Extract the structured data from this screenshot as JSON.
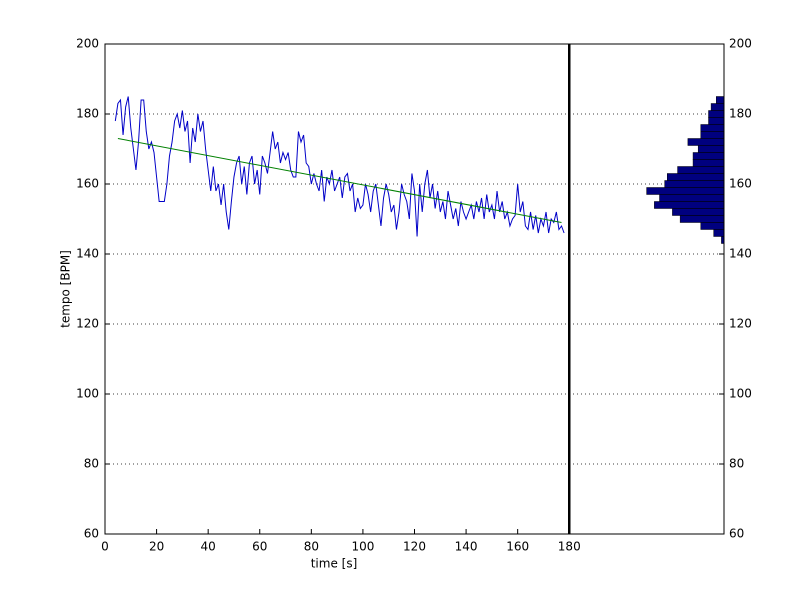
{
  "chart_data": {
    "type": "line",
    "xlabel": "time [s]",
    "ylabel": "tempo [BPM]",
    "xlim": [
      0,
      240
    ],
    "xticks": [
      0,
      20,
      40,
      60,
      80,
      100,
      120,
      140,
      160,
      180
    ],
    "ylim": [
      60,
      200
    ],
    "yticks": [
      60,
      80,
      100,
      120,
      140,
      160,
      180,
      200
    ],
    "y2lim": [
      60,
      200
    ],
    "y2ticks": [
      60,
      80,
      100,
      120,
      140,
      160,
      180,
      200
    ],
    "grid": true,
    "series": [
      {
        "color": "#0000c8",
        "x": [
          4,
          5,
          6,
          7,
          8,
          9,
          10,
          11,
          12,
          13,
          14,
          15,
          16,
          17,
          18,
          19,
          20,
          21,
          22,
          23,
          24,
          25,
          26,
          27,
          28,
          29,
          30,
          31,
          32,
          33,
          34,
          35,
          36,
          37,
          38,
          39,
          40,
          41,
          42,
          43,
          44,
          45,
          46,
          47,
          48,
          49,
          50,
          51,
          52,
          53,
          54,
          55,
          56,
          57,
          58,
          59,
          60,
          61,
          62,
          63,
          64,
          65,
          66,
          67,
          68,
          69,
          70,
          71,
          72,
          73,
          74,
          75,
          76,
          77,
          78,
          79,
          80,
          81,
          82,
          83,
          84,
          85,
          86,
          87,
          88,
          89,
          90,
          91,
          92,
          93,
          94,
          95,
          96,
          97,
          98,
          99,
          100,
          101,
          102,
          103,
          104,
          105,
          106,
          107,
          108,
          109,
          110,
          111,
          112,
          113,
          114,
          115,
          116,
          117,
          118,
          119,
          120,
          121,
          122,
          123,
          124,
          125,
          126,
          127,
          128,
          129,
          130,
          131,
          132,
          133,
          134,
          135,
          136,
          137,
          138,
          139,
          140,
          141,
          142,
          143,
          144,
          145,
          146,
          147,
          148,
          149,
          150,
          151,
          152,
          153,
          154,
          155,
          156,
          157,
          158,
          159,
          160,
          161,
          162,
          163,
          164,
          165,
          166,
          167,
          168,
          169,
          170,
          171,
          172,
          173,
          174,
          175,
          176,
          177,
          178
        ],
        "values": [
          178,
          183,
          184,
          174,
          182,
          185,
          176,
          170,
          164,
          172,
          184,
          184,
          175,
          170,
          172,
          169,
          162,
          155,
          155,
          155,
          160,
          168,
          172,
          178,
          180,
          176,
          181,
          175,
          178,
          166,
          176,
          172,
          180,
          175,
          178,
          170,
          164,
          158,
          165,
          158,
          160,
          154,
          160,
          152,
          147,
          155,
          162,
          166,
          168,
          160,
          165,
          157,
          166,
          168,
          160,
          164,
          157,
          168,
          166,
          163,
          169,
          175,
          170,
          172,
          166,
          169,
          167,
          169,
          164,
          162,
          162,
          175,
          172,
          174,
          166,
          165,
          160,
          163,
          160,
          158,
          164,
          155,
          162,
          160,
          164,
          158,
          160,
          162,
          156,
          162,
          163,
          158,
          160,
          152,
          156,
          153,
          154,
          160,
          157,
          152,
          158,
          160,
          154,
          148,
          156,
          160,
          157,
          152,
          154,
          147,
          152,
          160,
          157,
          155,
          150,
          163,
          158,
          145,
          160,
          152,
          160,
          164,
          156,
          160,
          153,
          158,
          152,
          155,
          150,
          158,
          154,
          150,
          153,
          148,
          155,
          152,
          150,
          152,
          154,
          150,
          155,
          152,
          156,
          150,
          157,
          152,
          154,
          150,
          158,
          152,
          155,
          150,
          152,
          148,
          150,
          151,
          160,
          152,
          155,
          148,
          147,
          152,
          147,
          151,
          146,
          150,
          148,
          152,
          146,
          150,
          149,
          152,
          147,
          148,
          146
        ]
      }
    ],
    "trend": {
      "color": "#008000",
      "x": [
        5,
        177
      ],
      "values": [
        173,
        149
      ]
    },
    "vline": {
      "color": "#000000",
      "x": 180
    },
    "histogram": {
      "color": "#00007f",
      "bins": [
        143,
        145,
        147,
        149,
        151,
        153,
        155,
        157,
        159,
        161,
        163,
        165,
        167,
        169,
        171,
        173,
        175,
        177,
        179,
        181,
        183,
        185
      ],
      "counts": [
        1,
        4,
        9,
        17,
        20,
        27,
        25,
        30,
        23,
        22,
        18,
        12,
        12,
        10,
        14,
        9,
        9,
        6,
        6,
        5,
        3
      ]
    }
  }
}
